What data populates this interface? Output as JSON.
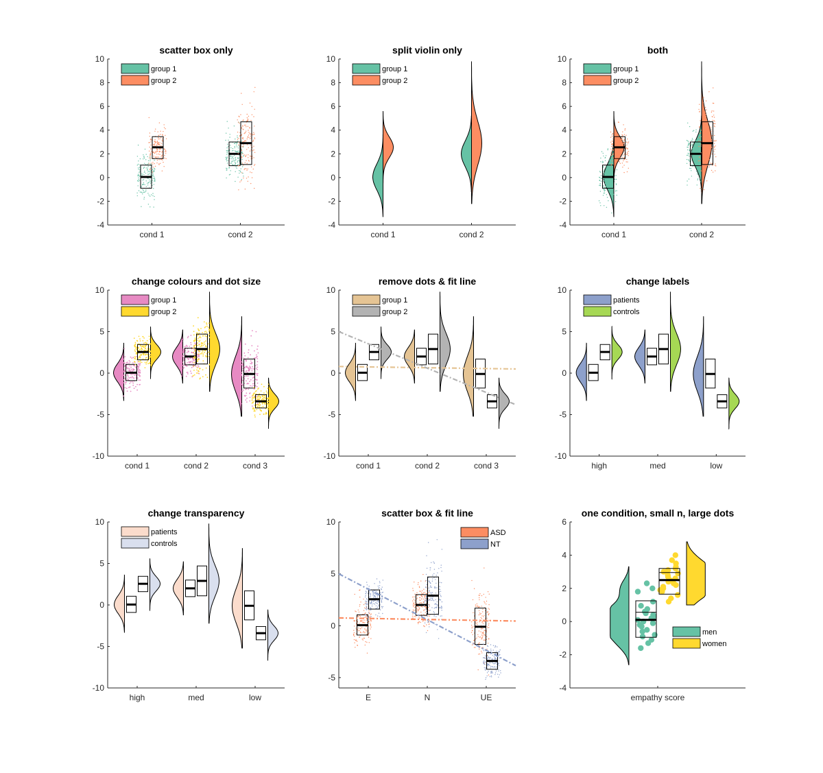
{
  "figure": {
    "background": "#ffffff",
    "axis_color": "#262626"
  },
  "chart_data": [
    {
      "type": "raincloud",
      "title": "scatter box only",
      "categories": [
        "cond 1",
        "cond 2"
      ],
      "ylim": [
        -4,
        10
      ],
      "yticks": [
        -4,
        -2,
        0,
        2,
        4,
        6,
        8,
        10
      ],
      "show": {
        "dots": true,
        "box": true,
        "violin": false,
        "fitline": false
      },
      "series": [
        {
          "name": "group 1",
          "color": "#66c2a5",
          "data": [
            {
              "median": 0.05,
              "q1": -0.9,
              "q3": 1.05,
              "min": -2.7,
              "max": 3.0,
              "sd": 1.0
            },
            {
              "median": 2.0,
              "q1": 1.0,
              "q3": 3.0,
              "min": -0.9,
              "max": 5.0,
              "sd": 1.0
            }
          ]
        },
        {
          "name": "group 2",
          "color": "#fc8d62",
          "data": [
            {
              "median": 2.55,
              "q1": 1.6,
              "q3": 3.45,
              "min": 0.0,
              "max": 5.2,
              "sd": 0.8
            },
            {
              "median": 2.9,
              "q1": 1.1,
              "q3": 4.7,
              "min": -1.2,
              "max": 8.9,
              "sd": 1.7
            }
          ]
        }
      ],
      "legend": {
        "labels": [
          "group 1",
          "group 2"
        ],
        "location": "top-left"
      }
    },
    {
      "type": "raincloud",
      "title": "split violin only",
      "categories": [
        "cond 1",
        "cond 2"
      ],
      "ylim": [
        -4,
        10
      ],
      "yticks": [
        -4,
        -2,
        0,
        2,
        4,
        6,
        8,
        10
      ],
      "show": {
        "dots": false,
        "box": false,
        "violin": "split",
        "fitline": false
      },
      "series": [
        {
          "name": "group 1",
          "color": "#66c2a5",
          "data": [
            {
              "median": 0.05,
              "q1": -0.9,
              "q3": 1.05,
              "min": -3.3,
              "max": 3.6,
              "sd": 1.0
            },
            {
              "median": 2.0,
              "q1": 1.0,
              "q3": 3.0,
              "min": -1.2,
              "max": 5.2,
              "sd": 1.0
            }
          ]
        },
        {
          "name": "group 2",
          "color": "#fc8d62",
          "data": [
            {
              "median": 2.55,
              "q1": 1.6,
              "q3": 3.45,
              "min": -0.7,
              "max": 5.6,
              "sd": 0.8
            },
            {
              "median": 2.9,
              "q1": 1.1,
              "q3": 4.7,
              "min": -2.2,
              "max": 9.8,
              "sd": 1.7
            }
          ]
        }
      ],
      "legend": {
        "labels": [
          "group 1",
          "group 2"
        ],
        "location": "top-left"
      }
    },
    {
      "type": "raincloud",
      "title": "both",
      "categories": [
        "cond 1",
        "cond 2"
      ],
      "ylim": [
        -4,
        10
      ],
      "yticks": [
        -4,
        -2,
        0,
        2,
        4,
        6,
        8,
        10
      ],
      "show": {
        "dots": true,
        "box": true,
        "violin": "split",
        "fitline": false
      },
      "series": [
        {
          "name": "group 1",
          "color": "#66c2a5",
          "data": [
            {
              "median": 0.05,
              "q1": -0.9,
              "q3": 1.05,
              "min": -3.3,
              "max": 3.6,
              "sd": 1.0
            },
            {
              "median": 2.0,
              "q1": 1.0,
              "q3": 3.0,
              "min": -1.2,
              "max": 5.2,
              "sd": 1.0
            }
          ]
        },
        {
          "name": "group 2",
          "color": "#fc8d62",
          "data": [
            {
              "median": 2.55,
              "q1": 1.6,
              "q3": 3.45,
              "min": -0.7,
              "max": 5.6,
              "sd": 0.8
            },
            {
              "median": 2.9,
              "q1": 1.1,
              "q3": 4.7,
              "min": -2.2,
              "max": 9.8,
              "sd": 1.7
            }
          ]
        }
      ],
      "legend": {
        "labels": [
          "group 1",
          "group 2"
        ],
        "location": "top-left"
      }
    },
    {
      "type": "raincloud",
      "title": "change colours and dot size",
      "categories": [
        "cond 1",
        "cond 2",
        "cond 3"
      ],
      "ylim": [
        -10,
        10
      ],
      "yticks": [
        -10,
        -5,
        0,
        5,
        10
      ],
      "show": {
        "dots": true,
        "box": true,
        "violin": true,
        "fitline": false
      },
      "series": [
        {
          "name": "group 1",
          "color": "#e78ac3",
          "data": [
            {
              "median": 0.05,
              "q1": -0.9,
              "q3": 1.05,
              "min": -3.3,
              "max": 3.6,
              "sd": 1.0
            },
            {
              "median": 2.0,
              "q1": 1.0,
              "q3": 3.0,
              "min": -1.2,
              "max": 5.2,
              "sd": 1.0
            },
            {
              "median": -0.1,
              "q1": -1.8,
              "q3": 1.7,
              "min": -5.2,
              "max": 6.8,
              "sd": 1.9
            }
          ]
        },
        {
          "name": "group 2",
          "color": "#ffd92f",
          "data": [
            {
              "median": 2.55,
              "q1": 1.6,
              "q3": 3.45,
              "min": -0.7,
              "max": 5.6,
              "sd": 0.8
            },
            {
              "median": 2.9,
              "q1": 1.1,
              "q3": 4.7,
              "min": -2.2,
              "max": 9.8,
              "sd": 1.7
            },
            {
              "median": -3.4,
              "q1": -4.2,
              "q3": -2.6,
              "min": -6.7,
              "max": -0.6,
              "sd": 0.8
            }
          ]
        }
      ],
      "legend": {
        "labels": [
          "group 1",
          "group 2"
        ],
        "location": "top-left"
      }
    },
    {
      "type": "raincloud",
      "title": "remove dots & fit line",
      "categories": [
        "cond 1",
        "cond 2",
        "cond 3"
      ],
      "ylim": [
        -10,
        10
      ],
      "yticks": [
        -10,
        -5,
        0,
        5,
        10
      ],
      "show": {
        "dots": false,
        "box": true,
        "violin": true,
        "fitline": true
      },
      "series": [
        {
          "name": "group 1",
          "color": "#e5c494",
          "data": [
            {
              "median": 0.05,
              "q1": -0.9,
              "q3": 1.05,
              "min": -3.3,
              "max": 3.6,
              "sd": 1.0
            },
            {
              "median": 2.0,
              "q1": 1.0,
              "q3": 3.0,
              "min": -1.2,
              "max": 5.2,
              "sd": 1.0
            },
            {
              "median": -0.1,
              "q1": -1.8,
              "q3": 1.7,
              "min": -5.2,
              "max": 6.8,
              "sd": 1.9
            }
          ]
        },
        {
          "name": "group 2",
          "color": "#b3b3b3",
          "data": [
            {
              "median": 2.55,
              "q1": 1.6,
              "q3": 3.45,
              "min": -0.7,
              "max": 5.6,
              "sd": 0.8
            },
            {
              "median": 2.9,
              "q1": 1.1,
              "q3": 4.7,
              "min": -2.2,
              "max": 9.8,
              "sd": 1.7
            },
            {
              "median": -3.4,
              "q1": -4.2,
              "q3": -2.6,
              "min": -6.7,
              "max": -0.6,
              "sd": 0.8
            }
          ]
        }
      ],
      "fitlines": [
        {
          "series": "group 1",
          "y_left": 0.8,
          "y_right": 0.5
        },
        {
          "series": "group 2",
          "y_left": 5.0,
          "y_right": -3.8
        }
      ],
      "legend": {
        "labels": [
          "group 1",
          "group 2"
        ],
        "location": "top-left"
      }
    },
    {
      "type": "raincloud",
      "title": "change labels",
      "categories": [
        "high",
        "med",
        "low"
      ],
      "ylim": [
        -10,
        10
      ],
      "yticks": [
        -10,
        -5,
        0,
        5,
        10
      ],
      "show": {
        "dots": false,
        "box": true,
        "violin": true,
        "fitline": false
      },
      "series": [
        {
          "name": "patients",
          "color": "#8da0cb",
          "data": [
            {
              "median": 0.05,
              "q1": -0.9,
              "q3": 1.05,
              "min": -3.3,
              "max": 3.6,
              "sd": 1.0
            },
            {
              "median": 2.0,
              "q1": 1.0,
              "q3": 3.0,
              "min": -1.2,
              "max": 5.2,
              "sd": 1.0
            },
            {
              "median": -0.1,
              "q1": -1.8,
              "q3": 1.7,
              "min": -5.2,
              "max": 6.8,
              "sd": 1.9
            }
          ]
        },
        {
          "name": "controls",
          "color": "#a6d854",
          "data": [
            {
              "median": 2.55,
              "q1": 1.6,
              "q3": 3.45,
              "min": -0.7,
              "max": 5.6,
              "sd": 0.8
            },
            {
              "median": 2.9,
              "q1": 1.1,
              "q3": 4.7,
              "min": -2.2,
              "max": 9.8,
              "sd": 1.7
            },
            {
              "median": -3.4,
              "q1": -4.2,
              "q3": -2.6,
              "min": -6.7,
              "max": -0.6,
              "sd": 0.8
            }
          ]
        }
      ],
      "legend": {
        "labels": [
          "patients",
          "controls"
        ],
        "location": "top-left"
      }
    },
    {
      "type": "raincloud",
      "title": "change transparency",
      "categories": [
        "high",
        "med",
        "low"
      ],
      "ylim": [
        -10,
        10
      ],
      "yticks": [
        -10,
        -5,
        0,
        5,
        10
      ],
      "show": {
        "dots": false,
        "box": true,
        "violin": true,
        "fitline": false
      },
      "series": [
        {
          "name": "patients",
          "color": "#fbdccc",
          "data": [
            {
              "median": 0.05,
              "q1": -0.9,
              "q3": 1.05,
              "min": -3.3,
              "max": 3.6,
              "sd": 1.0
            },
            {
              "median": 2.0,
              "q1": 1.0,
              "q3": 3.0,
              "min": -1.2,
              "max": 5.2,
              "sd": 1.0
            },
            {
              "median": -0.1,
              "q1": -1.8,
              "q3": 1.7,
              "min": -5.2,
              "max": 6.8,
              "sd": 1.9
            }
          ]
        },
        {
          "name": "controls",
          "color": "#d9dfee",
          "data": [
            {
              "median": 2.55,
              "q1": 1.6,
              "q3": 3.45,
              "min": -0.7,
              "max": 5.6,
              "sd": 0.8
            },
            {
              "median": 2.9,
              "q1": 1.1,
              "q3": 4.7,
              "min": -2.2,
              "max": 9.8,
              "sd": 1.7
            },
            {
              "median": -3.4,
              "q1": -4.2,
              "q3": -2.6,
              "min": -6.7,
              "max": -0.6,
              "sd": 0.8
            }
          ]
        }
      ],
      "legend": {
        "labels": [
          "patients",
          "controls"
        ],
        "location": "top-left"
      }
    },
    {
      "type": "raincloud",
      "title": "scatter box & fit line",
      "categories": [
        "E",
        "N",
        "UE"
      ],
      "ylim": [
        -6,
        10
      ],
      "yticks": [
        -5,
        0,
        5,
        10
      ],
      "show": {
        "dots": true,
        "box": true,
        "violin": false,
        "fitline": true
      },
      "series": [
        {
          "name": "ASD",
          "color": "#fc8d62",
          "data": [
            {
              "median": 0.05,
              "q1": -0.9,
              "q3": 1.05,
              "min": -2.8,
              "max": 3.5,
              "sd": 1.0
            },
            {
              "median": 2.0,
              "q1": 1.0,
              "q3": 3.0,
              "min": -0.9,
              "max": 5.1,
              "sd": 1.0
            },
            {
              "median": -0.1,
              "q1": -1.8,
              "q3": 1.7,
              "min": -4.9,
              "max": 6.7,
              "sd": 1.9
            }
          ]
        },
        {
          "name": "NT",
          "color": "#8da0cb",
          "data": [
            {
              "median": 2.55,
              "q1": 1.6,
              "q3": 3.45,
              "min": -0.6,
              "max": 5.5,
              "sd": 0.8
            },
            {
              "median": 2.9,
              "q1": 1.1,
              "q3": 4.7,
              "min": -1.4,
              "max": 8.9,
              "sd": 1.7
            },
            {
              "median": -3.4,
              "q1": -4.2,
              "q3": -2.6,
              "min": -6.4,
              "max": -0.6,
              "sd": 0.8
            }
          ]
        }
      ],
      "fitlines": [
        {
          "series": "ASD",
          "y_left": 0.75,
          "y_right": 0.45
        },
        {
          "series": "NT",
          "y_left": 5.0,
          "y_right": -3.85
        }
      ],
      "legend": {
        "labels": [
          "ASD",
          "NT"
        ],
        "location": "top-right"
      }
    },
    {
      "type": "raincloud",
      "title": "one condition, small n, large dots",
      "categories": [
        "empathy score"
      ],
      "ylim": [
        -4,
        6
      ],
      "yticks": [
        -4,
        -2,
        0,
        2,
        4,
        6
      ],
      "show": {
        "dots": "large",
        "box": true,
        "violin": true,
        "fitline": false
      },
      "series": [
        {
          "name": "men",
          "color": "#66c2a5",
          "data": [
            {
              "median": 0.1,
              "q1": -0.95,
              "q3": 1.25,
              "min": -2.6,
              "max": 3.3,
              "sd": 1.0,
              "points": [
                2.3,
                2.0,
                1.8,
                1.2,
                0.95,
                0.75,
                0.6,
                0.5,
                0.4,
                0.3,
                0.2,
                0.1,
                0.0,
                -0.1,
                -0.2,
                -0.3,
                -0.5,
                -0.6,
                -0.8,
                -0.9,
                -1.1,
                -1.3,
                -1.6
              ]
            }
          ]
        },
        {
          "name": "women",
          "color": "#ffd92f",
          "data": [
            {
              "median": 2.5,
              "q1": 1.65,
              "q3": 3.2,
              "min": 1.0,
              "max": 4.8,
              "sd": 0.7,
              "points": [
                4.0,
                3.7,
                3.5,
                3.3,
                3.2,
                3.1,
                3.0,
                2.9,
                2.8,
                2.7,
                2.6,
                2.5,
                2.45,
                2.4,
                2.3,
                2.2,
                2.1,
                2.0,
                1.9,
                1.8,
                1.6,
                1.4,
                1.2
              ]
            }
          ]
        }
      ],
      "legend": {
        "labels": [
          "men",
          "women"
        ],
        "location": "lower-right"
      }
    }
  ]
}
